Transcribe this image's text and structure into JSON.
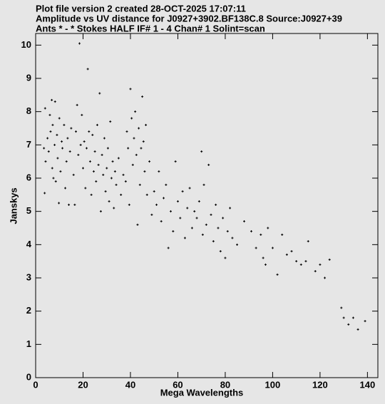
{
  "chart_data": {
    "type": "scatter",
    "title_lines": [
      "Plot file version 2  created 28-OCT-2025 17:07:11",
      "Amplitude vs UV distance for J0927+3902.BF138C.8   Source:J0927+39",
      "Ants * - *     Stokes HALF  IF# 1 - 4  Chan# 1  Solint=scan"
    ],
    "xlabel": "Mega Wavelengths",
    "ylabel": "Janskys",
    "color": "#000000",
    "xlim": [
      0,
      144.4
    ],
    "ylim": [
      0,
      10.35
    ],
    "xticks": [
      0,
      20,
      40,
      60,
      80,
      100,
      120,
      140
    ],
    "yticks": [
      0,
      1,
      2,
      3,
      4,
      5,
      6,
      7,
      8,
      9,
      10
    ],
    "x": [
      3.5,
      3.8,
      4,
      4.2,
      5,
      5.5,
      6,
      6.3,
      6.8,
      7,
      7.2,
      7.5,
      8,
      8.2,
      8.5,
      9,
      9.3,
      9.8,
      10,
      10.5,
      11,
      11.3,
      12,
      12.5,
      13,
      13.5,
      14,
      14.5,
      15,
      16,
      16.5,
      17,
      17.5,
      18,
      18.5,
      19,
      19.5,
      20,
      20.5,
      21,
      21.5,
      22,
      22.5,
      23,
      23.5,
      24,
      24.5,
      25,
      25.5,
      26,
      26.5,
      27,
      27.5,
      28,
      28.5,
      29,
      29.5,
      30,
      30.5,
      31,
      31.5,
      32,
      32.5,
      33,
      33.5,
      34,
      35,
      36,
      37,
      38,
      38.5,
      39,
      39.5,
      40,
      40.5,
      41,
      41.5,
      42,
      42.5,
      43,
      43.5,
      44,
      44.5,
      45,
      45.5,
      46,
      46.5,
      47,
      48,
      49,
      50,
      51,
      52,
      53,
      54,
      55,
      56,
      57,
      58,
      59,
      60,
      61,
      62,
      63,
      64,
      65,
      66,
      67,
      68,
      69,
      70,
      70.5,
      71,
      72,
      73,
      74,
      75,
      76,
      77,
      78,
      79,
      80,
      81,
      82,
      83,
      85,
      88,
      91,
      93,
      95,
      96,
      97,
      98,
      100,
      102,
      104,
      106,
      108,
      110,
      112,
      114,
      115,
      118,
      120,
      122,
      124,
      129,
      130,
      132,
      134,
      136,
      139
    ],
    "y": [
      6.9,
      5.55,
      8.1,
      6.5,
      7.2,
      6.8,
      7.9,
      7.4,
      8.35,
      6.3,
      7.6,
      6.0,
      7.0,
      8.3,
      5.9,
      7.3,
      6.6,
      5.25,
      7.8,
      6.2,
      7.1,
      6.9,
      7.6,
      5.7,
      6.5,
      7.2,
      5.2,
      6.8,
      7.5,
      6.1,
      5.2,
      7.4,
      8.2,
      6.7,
      10.05,
      7.0,
      7.9,
      6.3,
      7.1,
      5.7,
      6.9,
      9.28,
      7.4,
      6.5,
      5.5,
      7.3,
      6.2,
      6.8,
      5.9,
      7.6,
      6.4,
      8.55,
      5.0,
      6.7,
      6.1,
      7.2,
      5.6,
      6.3,
      6.9,
      5.3,
      7.7,
      6.0,
      6.5,
      5.1,
      6.2,
      5.8,
      6.6,
      5.5,
      6.1,
      5.9,
      7.4,
      6.9,
      5.2,
      8.68,
      7.8,
      6.4,
      7.2,
      8.0,
      6.7,
      4.6,
      7.5,
      5.8,
      6.9,
      8.45,
      7.1,
      6.2,
      7.6,
      5.5,
      6.5,
      4.9,
      5.6,
      5.2,
      6.2,
      4.7,
      5.4,
      5.8,
      3.9,
      5.0,
      4.4,
      6.5,
      5.3,
      4.8,
      5.6,
      4.2,
      5.1,
      5.7,
      4.5,
      5.0,
      4.8,
      5.3,
      6.8,
      4.3,
      5.8,
      4.6,
      6.4,
      4.9,
      4.1,
      5.2,
      4.5,
      3.8,
      4.8,
      3.6,
      4.4,
      5.1,
      4.2,
      4.0,
      4.7,
      4.4,
      3.9,
      4.3,
      3.6,
      3.4,
      4.5,
      3.9,
      3.1,
      4.3,
      3.7,
      3.8,
      3.5,
      3.4,
      3.5,
      4.1,
      3.2,
      3.4,
      3.0,
      3.55,
      2.1,
      1.8,
      1.6,
      1.8,
      1.45,
      1.7
    ]
  }
}
